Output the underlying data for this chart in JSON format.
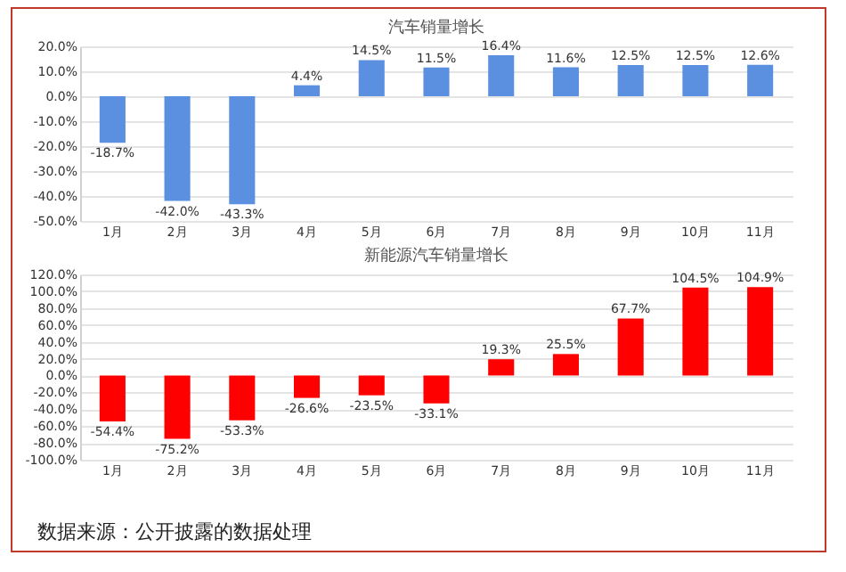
{
  "chart_data": [
    {
      "type": "bar",
      "title": "汽车销量增长",
      "categories": [
        "1月",
        "2月",
        "3月",
        "4月",
        "5月",
        "6月",
        "7月",
        "8月",
        "9月",
        "10月",
        "11月"
      ],
      "series": [
        {
          "color": "#5b8fe0",
          "values": [
            -18.7,
            -42.0,
            -43.3,
            4.4,
            14.5,
            11.5,
            16.4,
            11.6,
            12.5,
            12.5,
            12.6
          ],
          "value_labels": [
            "-18.7%",
            "-42.0%",
            "-43.3%",
            "4.4%",
            "14.5%",
            "11.5%",
            "16.4%",
            "11.6%",
            "12.5%",
            "12.5%",
            "12.6%"
          ]
        }
      ],
      "ylim": [
        -50,
        20
      ],
      "yticks": [
        {
          "value": -50,
          "label": "-50.0%"
        },
        {
          "value": -40,
          "label": "-40.0%"
        },
        {
          "value": -30,
          "label": "-30.0%"
        },
        {
          "value": -20,
          "label": "-20.0%"
        },
        {
          "value": -10,
          "label": "-10.0%"
        },
        {
          "value": 0,
          "label": "0.0%"
        },
        {
          "value": 10,
          "label": "10.0%"
        },
        {
          "value": 20,
          "label": "20.0%"
        }
      ],
      "grid": "y"
    },
    {
      "type": "bar",
      "title": "新能源汽车销量增长",
      "categories": [
        "1月",
        "2月",
        "3月",
        "4月",
        "5月",
        "6月",
        "7月",
        "8月",
        "9月",
        "10月",
        "11月"
      ],
      "series": [
        {
          "color": "#ff0000",
          "values": [
            -54.4,
            -75.2,
            -53.3,
            -26.6,
            -23.5,
            -33.1,
            19.3,
            25.5,
            67.7,
            104.5,
            104.9
          ],
          "value_labels": [
            "-54.4%",
            "-75.2%",
            "-53.3%",
            "-26.6%",
            "-23.5%",
            "-33.1%",
            "19.3%",
            "25.5%",
            "67.7%",
            "104.5%",
            "104.9%"
          ]
        }
      ],
      "ylim": [
        -100,
        120
      ],
      "yticks": [
        {
          "value": -100,
          "label": "-100.0%"
        },
        {
          "value": -80,
          "label": "-80.0%"
        },
        {
          "value": -60,
          "label": "-60.0%"
        },
        {
          "value": -40,
          "label": "-40.0%"
        },
        {
          "value": -20,
          "label": "-20.0%"
        },
        {
          "value": 0,
          "label": "0.0%"
        },
        {
          "value": 20,
          "label": "20.0%"
        },
        {
          "value": 40,
          "label": "40.0%"
        },
        {
          "value": 60,
          "label": "60.0%"
        },
        {
          "value": 80,
          "label": "80.0%"
        },
        {
          "value": 100,
          "label": "100.0%"
        },
        {
          "value": 120,
          "label": "120.0%"
        }
      ],
      "grid": "y",
      "annotations": [
        "数据来源：公开披露的数据处理"
      ]
    }
  ]
}
